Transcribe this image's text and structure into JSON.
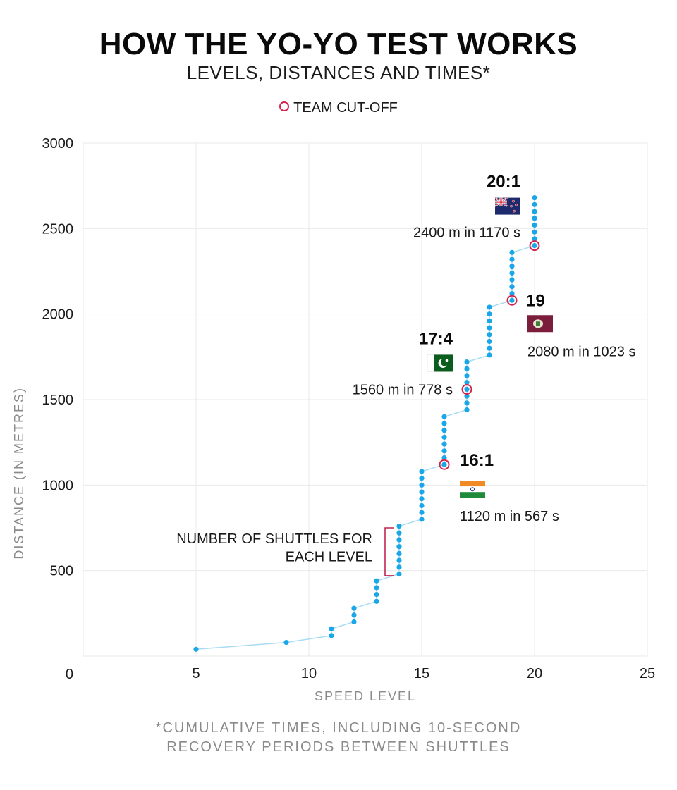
{
  "header": {
    "title": "HOW THE YO-YO TEST WORKS",
    "subtitle": "LEVELS, DISTANCES AND TIMES*"
  },
  "legend": {
    "label": "TEAM CUT-OFF",
    "marker_color": "#d4244e"
  },
  "footnote": {
    "line1": "*CUMULATIVE TIMES, INCLUDING 10-SECOND",
    "line2": "RECOVERY PERIODS BETWEEN SHUTTLES"
  },
  "chart_data": {
    "type": "scatter",
    "title": "HOW THE YO-YO TEST WORKS",
    "subtitle": "LEVELS, DISTANCES AND TIMES*",
    "xlabel": "SPEED LEVEL",
    "ylabel": "DISTANCE (IN METRES)",
    "xlim": [
      0,
      25
    ],
    "ylim": [
      0,
      3000
    ],
    "xticks": [
      5,
      10,
      15,
      20,
      25
    ],
    "yticks": [
      500,
      1000,
      1500,
      2000,
      2500,
      3000
    ],
    "origin_label": "0",
    "grid": true,
    "colors": {
      "points": "#1aa7e8",
      "line": "#a8dcf3",
      "cutoff": "#d4244e",
      "bracket": "#c0264f"
    },
    "levels": [
      {
        "level": 5,
        "shuttles": 1
      },
      {
        "level": 9,
        "shuttles": 1
      },
      {
        "level": 11,
        "shuttles": 2
      },
      {
        "level": 12,
        "shuttles": 3
      },
      {
        "level": 13,
        "shuttles": 4
      },
      {
        "level": 14,
        "shuttles": 8
      },
      {
        "level": 15,
        "shuttles": 8
      },
      {
        "level": 16,
        "shuttles": 8
      },
      {
        "level": 17,
        "shuttles": 8
      },
      {
        "level": 18,
        "shuttles": 8
      },
      {
        "level": 19,
        "shuttles": 8
      },
      {
        "level": 20,
        "shuttles": 8
      }
    ],
    "shuttle_distance_m": 40,
    "cutoffs": [
      {
        "level": 16,
        "distance": 1120,
        "label": "16:1",
        "note": "1120 m in 567 s",
        "team": "India"
      },
      {
        "level": 17,
        "distance": 1560,
        "label": "17:4",
        "note": "1560 m in 778 s",
        "team": "Pakistan"
      },
      {
        "level": 19,
        "distance": 2080,
        "label": "19",
        "note": "2080 m in 1023 s",
        "team": "West Indies"
      },
      {
        "level": 20,
        "distance": 2400,
        "label": "20:1",
        "note": "2400 m in 1170 s",
        "team": "New Zealand"
      }
    ],
    "annotations": {
      "shuttles_line1": "NUMBER OF SHUTTLES FOR",
      "shuttles_line2": "EACH LEVEL"
    }
  }
}
